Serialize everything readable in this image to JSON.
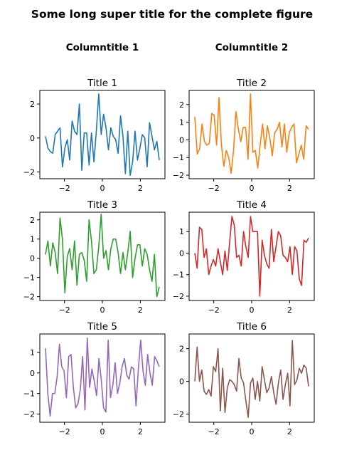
{
  "figure": {
    "suptitle": "Some long super title for the complete figure",
    "column_titles": [
      "Columntitle 1",
      "Columntitle 2"
    ]
  },
  "chart_data": [
    {
      "type": "line",
      "title": "Title 1",
      "color": "#1f77b4",
      "xlim": [
        -3.3,
        3.3
      ],
      "ylim": [
        -2.4,
        2.8
      ],
      "xticks": [
        -2,
        0,
        2
      ],
      "yticks": [
        -2,
        0,
        2
      ],
      "x_range": [
        -3.0,
        3.0
      ],
      "values": [
        0.1,
        -0.6,
        -0.8,
        -0.9,
        0.2,
        0.4,
        0.6,
        -1.7,
        -0.6,
        -0.1,
        -1.3,
        1.0,
        0.4,
        0.2,
        2.0,
        -1.9,
        0.3,
        0.3,
        -1.6,
        0.3,
        -1.4,
        0.4,
        2.6,
        0.2,
        1.4,
        0.6,
        -0.7,
        0.6,
        0.1,
        -0.1,
        -0.9,
        1.3,
        0.1,
        -2.1,
        0.4,
        -2.2,
        -1.4,
        0.4,
        -1.3,
        -0.6,
        0.2,
        0.0,
        -1.7,
        0.9,
        0.1,
        -0.7,
        -0.2,
        -1.3
      ]
    },
    {
      "type": "line",
      "title": "Title 2",
      "color": "#ff7f0e",
      "xlim": [
        -3.3,
        3.3
      ],
      "ylim": [
        -2.2,
        2.8
      ],
      "xticks": [
        -2,
        0,
        2
      ],
      "yticks": [
        -2,
        -1,
        0,
        1,
        2
      ],
      "x_range": [
        -3.0,
        3.0
      ],
      "values": [
        1.3,
        -0.8,
        -0.5,
        0.9,
        -0.1,
        -0.3,
        -0.2,
        1.5,
        1.4,
        -0.3,
        2.4,
        -0.3,
        -1.5,
        -0.6,
        -1.0,
        -1.9,
        -0.6,
        1.6,
        0.6,
        -0.1,
        0.7,
        0.7,
        -1.1,
        2.6,
        -0.7,
        -0.6,
        -1.6,
        -0.3,
        0.9,
        -0.5,
        0.8,
        0.1,
        -0.9,
        0.4,
        0.6,
        1.0,
        -0.4,
        0.9,
        -0.7,
        0.4,
        0.7,
        0.9,
        -1.3,
        -0.8,
        -0.3,
        -1.1,
        0.8,
        0.6
      ]
    },
    {
      "type": "line",
      "title": "Title 3",
      "color": "#2ca02c",
      "xlim": [
        -3.3,
        3.3
      ],
      "ylim": [
        -2.2,
        2.4
      ],
      "xticks": [
        -2,
        0,
        2
      ],
      "yticks": [
        -2,
        -1,
        0,
        1,
        2
      ],
      "x_range": [
        -3.0,
        3.0
      ],
      "values": [
        0.2,
        0.9,
        -0.4,
        0.8,
        0.3,
        -0.8,
        2.1,
        1.0,
        -1.8,
        0.1,
        0.5,
        -0.6,
        0.9,
        -1.4,
        0.2,
        0.3,
        -0.1,
        -1.2,
        2.0,
        0.9,
        -0.8,
        -0.6,
        0.6,
        2.3,
        0.0,
        0.4,
        -0.6,
        0.5,
        1.0,
        1.0,
        0.3,
        -0.8,
        0.3,
        -0.6,
        0.3,
        1.4,
        -1.0,
        0.0,
        0.7,
        0.7,
        -0.4,
        0.5,
        0.2,
        -0.6,
        -1.2,
        0.2,
        -2.0,
        -1.5
      ]
    },
    {
      "type": "line",
      "title": "Title 4",
      "color": "#d62728",
      "xlim": [
        -3.3,
        3.3
      ],
      "ylim": [
        -2.2,
        1.9
      ],
      "xticks": [
        -2,
        0,
        2
      ],
      "yticks": [
        -2,
        -1,
        0,
        1
      ],
      "x_range": [
        -3.0,
        3.0
      ],
      "values": [
        0.0,
        -0.7,
        1.2,
        1.1,
        -0.2,
        0.2,
        -1.0,
        -0.6,
        -0.3,
        -0.6,
        0.2,
        -0.4,
        -1.0,
        0.1,
        -0.8,
        0.5,
        1.7,
        1.3,
        -0.2,
        -0.1,
        -0.6,
        1.0,
        0.3,
        -0.2,
        1.7,
        1.0,
        1.0,
        1.0,
        -2.0,
        0.6,
        -0.1,
        -0.5,
        -0.7,
        1.1,
        -0.4,
        0.3,
        1.0,
        0.8,
        -0.1,
        -0.2,
        -0.4,
        0.3,
        -1.0,
        0.3,
        0.1,
        -1.2,
        -1.5,
        0.6,
        0.5,
        0.7
      ]
    },
    {
      "type": "line",
      "title": "Title 5",
      "color": "#9467bd",
      "xlim": [
        -3.3,
        3.3
      ],
      "ylim": [
        -2.4,
        1.9
      ],
      "xticks": [
        -2,
        0,
        2
      ],
      "yticks": [
        -2,
        -1,
        0,
        1
      ],
      "x_range": [
        -3.0,
        3.0
      ],
      "values": [
        1.2,
        -1.0,
        -2.1,
        -1.0,
        -1.0,
        -0.2,
        1.4,
        0.3,
        0.1,
        -1.2,
        0.8,
        0.9,
        -0.7,
        -1.7,
        -1.5,
        -0.8,
        0.8,
        -1.8,
        1.7,
        -0.7,
        0.2,
        -0.4,
        -1.1,
        0.7,
        -0.3,
        -1.7,
        -1.9,
        1.6,
        -1.2,
        -0.6,
        0.5,
        -1.0,
        -0.5,
        0.3,
        0.7,
        -0.1,
        -0.3,
        0.3,
        0.2,
        -1.6,
        0.2,
        1.6,
        0.1,
        -0.6,
        0.9,
        0.0,
        -0.6,
        0.8,
        0.6,
        0.3
      ]
    },
    {
      "type": "line",
      "title": "Title 6",
      "color": "#8c564b",
      "xlim": [
        -3.3,
        3.3
      ],
      "ylim": [
        -2.5,
        2.9
      ],
      "xticks": [
        -2,
        0,
        2
      ],
      "yticks": [
        -2,
        0,
        2
      ],
      "x_range": [
        -3.0,
        3.0
      ],
      "values": [
        0.0,
        2.1,
        0.0,
        0.7,
        -0.6,
        -0.8,
        -0.5,
        -0.9,
        0.9,
        0.6,
        2.0,
        -1.8,
        0.8,
        -1.9,
        -0.4,
        0.1,
        0.0,
        -0.2,
        -0.6,
        1.4,
        0.2,
        -0.1,
        -1.2,
        -2.2,
        -0.1,
        0.2,
        -1.1,
        0.0,
        -1.2,
        0.9,
        0.1,
        -0.7,
        -0.4,
        0.3,
        -0.7,
        -1.4,
        -0.1,
        0.7,
        -1.1,
        -0.2,
        0.5,
        -1.5,
        2.5,
        -0.2,
        0.1,
        0.8,
        0.5,
        1.0,
        0.8,
        -0.3
      ]
    }
  ]
}
